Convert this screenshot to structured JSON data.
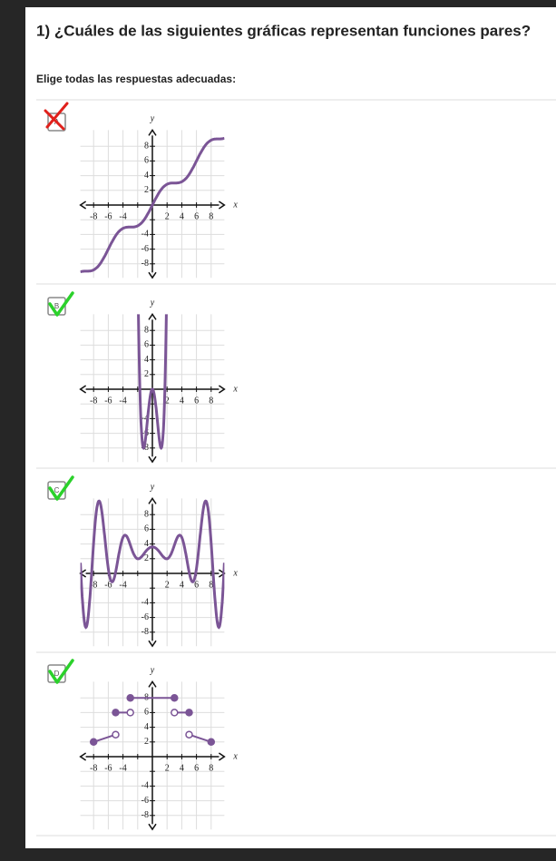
{
  "question": {
    "title": "1) ¿Cuáles de las siguientes gráficas representan funciones pares?",
    "instruction": "Elige todas las respuestas adecuadas:"
  },
  "options": [
    {
      "letter": "A",
      "result": "incorrect",
      "x_label": "x",
      "y_label": "y",
      "x_ticks": [
        "-8",
        "-6",
        "-4",
        "2",
        "4",
        "6",
        "8"
      ],
      "y_ticks": [
        "8",
        "6",
        "4",
        "2",
        "-4",
        "-6",
        "-8"
      ]
    },
    {
      "letter": "B",
      "result": "correct",
      "x_label": "x",
      "y_label": "y",
      "x_ticks": [
        "-8",
        "-6",
        "-4",
        "2",
        "4",
        "6",
        "8"
      ],
      "y_ticks": [
        "8",
        "6",
        "4",
        "2",
        "-4",
        "-6",
        "-8"
      ]
    },
    {
      "letter": "C",
      "result": "correct",
      "x_label": "x",
      "y_label": "y",
      "x_ticks": [
        "-8",
        "-6",
        "-4",
        "2",
        "4",
        "6",
        "8"
      ],
      "y_ticks": [
        "8",
        "6",
        "4",
        "2",
        "-4",
        "-6",
        "-8"
      ]
    },
    {
      "letter": "D",
      "result": "correct",
      "x_label": "x",
      "y_label": "y",
      "x_ticks": [
        "-8",
        "-6",
        "-4",
        "2",
        "4",
        "6",
        "8"
      ],
      "y_ticks": [
        "8",
        "6",
        "4",
        "2",
        "-4",
        "-6",
        "-8"
      ]
    }
  ]
}
